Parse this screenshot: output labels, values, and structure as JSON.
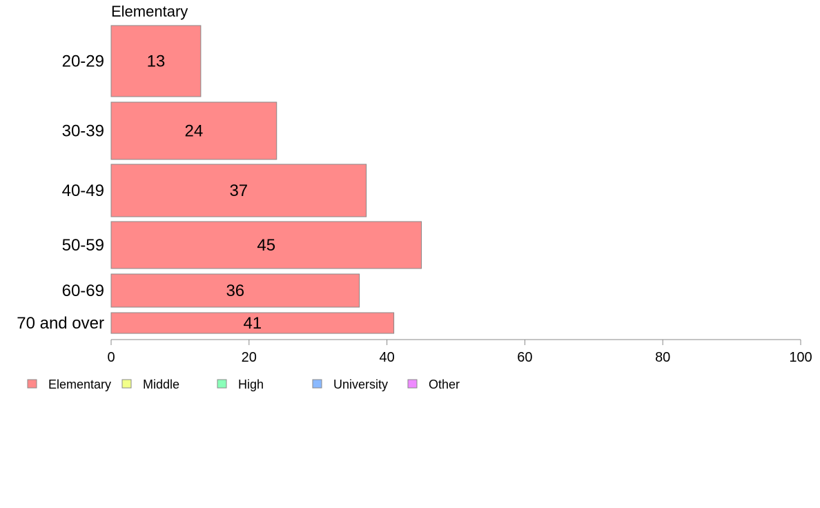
{
  "chart_data": {
    "type": "bar",
    "orientation": "horizontal",
    "title": "Elementary",
    "categories": [
      "20-29",
      "30-39",
      "40-49",
      "50-59",
      "60-69",
      "70 and over"
    ],
    "series": [
      {
        "name": "Elementary",
        "values": [
          13,
          24,
          37,
          45,
          36,
          41
        ],
        "color": "#ff8a8a"
      }
    ],
    "data_labels": [
      "13",
      "24",
      "37",
      "45",
      "36",
      "41"
    ],
    "xlim": [
      0,
      100
    ],
    "x_ticks": [
      0,
      20,
      40,
      60,
      80,
      100
    ],
    "x_tick_labels": [
      "0",
      "20",
      "40",
      "60",
      "80",
      "100"
    ],
    "grid": false,
    "legend": {
      "placement": "bottom-left",
      "items": [
        {
          "label": "Elementary",
          "color": "#ff8a8a"
        },
        {
          "label": "Middle",
          "color": "#f2ff8a"
        },
        {
          "label": "High",
          "color": "#8affb9"
        },
        {
          "label": "University",
          "color": "#8ab9ff"
        },
        {
          "label": "Other",
          "color": "#ee8aff"
        }
      ]
    }
  }
}
